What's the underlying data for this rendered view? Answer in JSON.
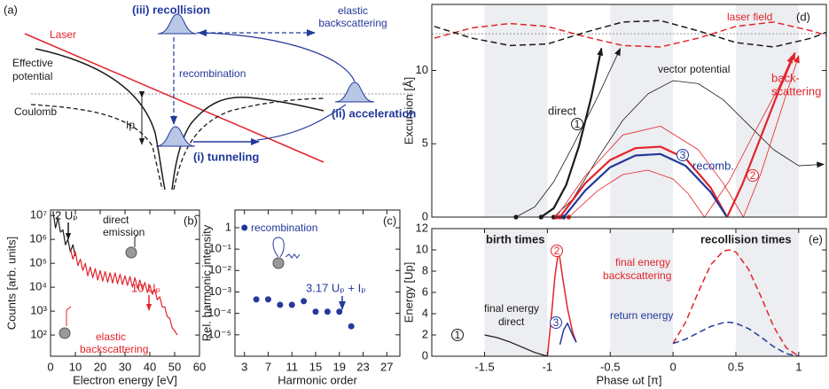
{
  "diagram": {
    "panel_label": "(a)",
    "laser": "Laser",
    "effective_potential": [
      "Effective",
      "potential"
    ],
    "coulomb": "Coulomb",
    "ip": "Ip",
    "recollision": "(iii) recollision",
    "elastic_backscattering": [
      "elastic",
      "backscattering"
    ],
    "recombination": "recombination",
    "acceleration": "(ii) acceleration",
    "tunneling": "(i) tunneling"
  },
  "chart_data": [
    {
      "type": "line",
      "panel_label": "(b)",
      "xlabel": "Electron energy [eV]",
      "ylabel": "Counts [arb. units]",
      "xlim": [
        0,
        60
      ],
      "xticks": [
        0,
        10,
        20,
        30,
        40,
        50,
        60
      ],
      "ylim": [
        13,
        17000000
      ],
      "ylog": true,
      "yticks": [
        {
          "value": 100,
          "label": "10²"
        },
        {
          "value": 1000,
          "label": "10³"
        },
        {
          "value": 10000,
          "label": "10⁴"
        },
        {
          "value": 100000,
          "label": "10⁵"
        },
        {
          "value": 1000000,
          "label": "10⁶"
        },
        {
          "value": 10000000,
          "label": "10⁷"
        }
      ],
      "series": [
        {
          "color": "#1a1a1a",
          "x": [
            1,
            2,
            3,
            4,
            5,
            6,
            7,
            8,
            9,
            10
          ],
          "values": [
            15000000,
            3000000,
            8000000,
            2000000,
            2500000,
            600000,
            1000000,
            300000,
            600000,
            200000
          ]
        },
        {
          "color": "#e3232b",
          "x": [
            8,
            9,
            10,
            11,
            12,
            13,
            14,
            15,
            16,
            17,
            18,
            19,
            20,
            21,
            22,
            23,
            24,
            25,
            26,
            27,
            28,
            29,
            30,
            31,
            32,
            33,
            34,
            35,
            36,
            37,
            38,
            39,
            40,
            41,
            42,
            43,
            44,
            45,
            46,
            47,
            48,
            49,
            50,
            51
          ],
          "values": [
            400000,
            150000,
            300000,
            80000,
            150000,
            50000,
            100000,
            30000,
            70000,
            25000,
            60000,
            20000,
            50000,
            18000,
            45000,
            16000,
            40000,
            15000,
            40000,
            14000,
            35000,
            13000,
            30000,
            12000,
            28000,
            10000,
            25000,
            9000,
            20000,
            8000,
            16000,
            6000,
            12000,
            5000,
            8000,
            3000,
            4000,
            1500,
            1500,
            600,
            500,
            200,
            150,
            100
          ]
        }
      ],
      "annotations": {
        "two_up": "2 Uₚ",
        "direct_emission": [
          "direct",
          "emission"
        ],
        "ten_up": "10 Uₚ",
        "elastic_backscattering": [
          "elastic",
          "backscattering"
        ]
      }
    },
    {
      "type": "scatter",
      "panel_label": "(c)",
      "xlabel": "Harmonic order",
      "ylabel": "Rel. harmonic intensity",
      "xlim": [
        1.4,
        29.2
      ],
      "xticks": [
        3,
        7,
        11,
        15,
        19,
        23,
        27
      ],
      "ylim": [
        1e-06,
        6.7
      ],
      "ylog": true,
      "yticks": [
        {
          "value": 1e-05,
          "label": "10⁻⁵"
        },
        {
          "value": 0.0001,
          "label": "10⁻⁴"
        },
        {
          "value": 0.001,
          "label": "10⁻³"
        },
        {
          "value": 0.01,
          "label": "10⁻²"
        },
        {
          "value": 0.1,
          "label": "10⁻¹"
        },
        1
      ],
      "color": "#23399b",
      "x": [
        3,
        5,
        7,
        9,
        11,
        13,
        15,
        17,
        19,
        21
      ],
      "values": [
        1,
        0.00045,
        0.00045,
        0.00025,
        0.00025,
        0.00037,
        0.00012,
        0.00012,
        0.00012,
        2.5e-05
      ],
      "annotations": {
        "recombination": "recombination",
        "cutoff": "3.17 Uₚ + Iₚ"
      }
    },
    {
      "type": "line",
      "panel_label": "(d)",
      "ylabel": "Excursion [Å]",
      "xlim": [
        -1.92,
        1.22
      ],
      "ylim": [
        0,
        14.5
      ],
      "yticks": [
        0,
        5,
        10
      ],
      "reference_line": 12.5,
      "series": [
        {
          "color": "#e3232b",
          "linestyle": "dashed",
          "linewidth": 1.5,
          "x": [
            -1.9,
            -1.6,
            -1.3,
            -1.0,
            -0.7,
            -0.4,
            -0.1,
            0.2,
            0.5,
            0.8,
            1.1,
            1.22
          ],
          "values": [
            12.2,
            12.9,
            13.2,
            13.0,
            12.3,
            11.7,
            11.6,
            12.2,
            13.0,
            13.3,
            12.7,
            12.4
          ]
        },
        {
          "color": "#1a1a1a",
          "linestyle": "dashed",
          "linewidth": 1.5,
          "x": [
            -1.9,
            -1.6,
            -1.3,
            -1.0,
            -0.7,
            -0.4,
            -0.1,
            0.2,
            0.5,
            0.8,
            1.1,
            1.22
          ],
          "values": [
            13.0,
            12.2,
            11.7,
            11.8,
            12.6,
            13.3,
            13.4,
            12.7,
            11.9,
            11.6,
            12.2,
            12.6
          ]
        },
        {
          "color": "#1a1a1a",
          "linewidth": 2.2,
          "arrow": true,
          "start_marker": true,
          "x": [
            -1.05,
            -0.95,
            -0.85,
            -0.75,
            -0.65,
            -0.57
          ],
          "values": [
            0,
            0.6,
            2.2,
            4.8,
            8.2,
            11.5
          ]
        },
        {
          "color": "#1a1a1a",
          "linewidth": 0.8,
          "arrow": true,
          "start_marker": true,
          "x": [
            -1.25,
            -1.1,
            -0.95,
            -0.8,
            -0.6,
            -0.42
          ],
          "values": [
            0,
            0.7,
            2.4,
            4.8,
            8.2,
            11.5
          ]
        },
        {
          "color": "#1a1a1a",
          "linewidth": 0.8,
          "arrow": true,
          "start_marker": true,
          "x": [
            -0.95,
            -0.8,
            -0.6,
            -0.4,
            -0.2,
            0,
            0.2,
            0.4,
            0.6,
            0.8,
            1.0,
            1.2
          ],
          "values": [
            0,
            1.2,
            4.0,
            6.6,
            8.4,
            9.3,
            9.1,
            8.0,
            6.3,
            4.6,
            3.5,
            3.6
          ]
        },
        {
          "color": "#e3232b",
          "linewidth": 0.8,
          "start_marker": true,
          "x": [
            -0.93,
            -0.7,
            -0.4,
            -0.1,
            0.2,
            0.4,
            0.56
          ],
          "values": [
            0,
            2.8,
            5.6,
            6.2,
            4.6,
            2.3,
            0
          ]
        },
        {
          "color": "#e3232b",
          "linewidth": 0.8,
          "start_marker": true,
          "x": [
            -0.83,
            -0.6,
            -0.4,
            -0.2,
            0,
            0.12,
            0.25
          ],
          "values": [
            0,
            1.8,
            2.9,
            3.2,
            2.6,
            1.6,
            0
          ]
        },
        {
          "color": "#e3232b",
          "linewidth": 0.8,
          "arrow": true,
          "x": [
            0.56,
            0.7,
            0.85,
            1.0
          ],
          "values": [
            0,
            3,
            7,
            11
          ]
        },
        {
          "color": "#e3232b",
          "linewidth": 0.8,
          "arrow": true,
          "x": [
            0.25,
            0.45,
            0.65,
            0.85,
            0.95
          ],
          "values": [
            0,
            2.5,
            5.8,
            9,
            11
          ]
        },
        {
          "color": "#e3232b",
          "linewidth": 2.2,
          "start_marker": true,
          "x": [
            -0.9,
            -0.7,
            -0.5,
            -0.3,
            -0.1,
            0.1,
            0.3,
            0.43
          ],
          "values": [
            0,
            2.3,
            3.9,
            4.7,
            4.8,
            4.0,
            2.0,
            0
          ]
        },
        {
          "color": "#23399b",
          "linewidth": 2.2,
          "start_marker": true,
          "x": [
            -0.87,
            -0.7,
            -0.5,
            -0.3,
            -0.1,
            0.1,
            0.3,
            0.43
          ],
          "values": [
            0,
            1.8,
            3.4,
            4.2,
            4.3,
            3.5,
            1.7,
            0
          ]
        },
        {
          "color": "#e3232b",
          "linewidth": 2.2,
          "arrow": true,
          "x": [
            0.43,
            0.55,
            0.7,
            0.85,
            0.97
          ],
          "values": [
            0,
            2.2,
            5.5,
            8.8,
            11.2
          ]
        }
      ],
      "annotations": {
        "laser_field": "laser field",
        "vector_potential": "vector potential",
        "backscattering": [
          "back-",
          "scattering"
        ],
        "direct": "direct",
        "recomb": "recomb.",
        "circle_1": "1",
        "circle_2": "2",
        "circle_3": "3"
      }
    },
    {
      "type": "line",
      "panel_label": "(e)",
      "xlabel": "Phase ωt [π]",
      "ylabel": "Energy [Up]",
      "xlim": [
        -1.92,
        1.22
      ],
      "xticks": [
        -1.5,
        -1,
        -0.5,
        0,
        0.5,
        1
      ],
      "ylim": [
        0,
        12
      ],
      "yticks": [
        0,
        2,
        4,
        6,
        8,
        10,
        12
      ],
      "series": [
        {
          "color": "#1a1a1a",
          "linewidth": 1.2,
          "x": [
            -1.5,
            -1.4,
            -1.3,
            -1.2,
            -1.1,
            -1.0
          ],
          "values": [
            2.0,
            1.75,
            1.35,
            0.85,
            0.35,
            0
          ]
        },
        {
          "color": "#e3232b",
          "linewidth": 1.5,
          "x": [
            -1.0,
            -0.97,
            -0.94,
            -0.91,
            -0.88,
            -0.84,
            -0.8,
            -0.77
          ],
          "values": [
            0,
            3.5,
            7.5,
            10,
            7.5,
            4.5,
            2.3,
            1.3
          ]
        },
        {
          "color": "#23399b",
          "linewidth": 1.5,
          "x": [
            -0.9,
            -0.87,
            -0.84,
            -0.8,
            -0.77
          ],
          "values": [
            1.1,
            2.5,
            3.1,
            2.0,
            1.3
          ]
        },
        {
          "color": "#e3232b",
          "linestyle": "dashed",
          "linewidth": 1.5,
          "x": [
            0,
            0.1,
            0.2,
            0.3,
            0.4,
            0.45,
            0.5,
            0.6,
            0.7,
            0.8,
            0.9,
            1.0
          ],
          "values": [
            1.2,
            3.2,
            6.0,
            8.6,
            9.9,
            10.0,
            9.8,
            8.2,
            5.6,
            2.8,
            0.8,
            0
          ]
        },
        {
          "color": "#23399b",
          "linestyle": "dashed",
          "linewidth": 1.5,
          "x": [
            0,
            0.1,
            0.2,
            0.3,
            0.4,
            0.45,
            0.5,
            0.6,
            0.7,
            0.8,
            0.9,
            1.0
          ],
          "values": [
            1.2,
            1.6,
            2.2,
            2.8,
            3.15,
            3.2,
            3.1,
            2.6,
            1.8,
            0.9,
            0.25,
            0
          ]
        }
      ],
      "annotations": {
        "birth_times": "birth times",
        "recollision_times": "recollision times",
        "final_energy_backscattering": [
          "final energy",
          "backscattering"
        ],
        "return_energy": "return energy",
        "final_energy_direct": [
          "final energy",
          "direct"
        ],
        "circle_1": "1",
        "circle_2": "2",
        "circle_3": "3"
      }
    }
  ]
}
